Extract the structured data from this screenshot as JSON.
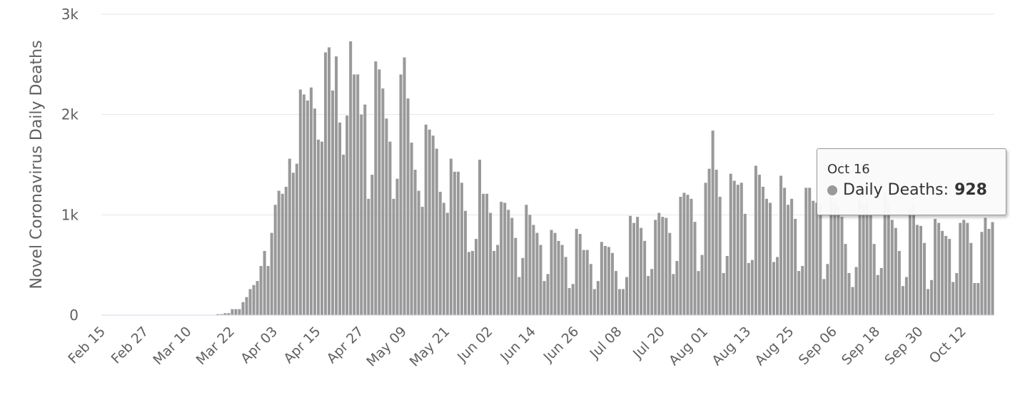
{
  "chart_data": {
    "type": "bar",
    "title": "",
    "xlabel": "",
    "ylabel": "Novel Coronavirus Daily Deaths",
    "ylim": [
      0,
      3000
    ],
    "ytick_values": [
      0,
      1000,
      2000,
      3000
    ],
    "ytick_labels": [
      "0",
      "1k",
      "2k",
      "3k"
    ],
    "xtick_labels": [
      "Feb 15",
      "Feb 27",
      "Mar 10",
      "Mar 22",
      "Apr 03",
      "Apr 15",
      "Apr 27",
      "May 09",
      "May 21",
      "Jun 02",
      "Jun 14",
      "Jun 26",
      "Jul 08",
      "Jul 20",
      "Aug 01",
      "Aug 13",
      "Aug 25",
      "Sep 06",
      "Sep 18",
      "Sep 30",
      "Oct 12"
    ],
    "categories_range": [
      "Feb 15",
      "Oct 16"
    ],
    "grid": true,
    "bar_color": "#999999",
    "series": [
      {
        "name": "Daily Deaths",
        "values": [
          0,
          0,
          0,
          0,
          0,
          0,
          0,
          0,
          0,
          0,
          0,
          0,
          0,
          0,
          0,
          0,
          0,
          0,
          0,
          0,
          0,
          0,
          0,
          0,
          0,
          0,
          0,
          0,
          0,
          0,
          0,
          0,
          10,
          10,
          20,
          20,
          60,
          60,
          60,
          130,
          180,
          260,
          300,
          340,
          490,
          640,
          490,
          820,
          1100,
          1240,
          1210,
          1280,
          1560,
          1420,
          1510,
          2250,
          2200,
          2140,
          2270,
          2060,
          1750,
          1730,
          2620,
          2670,
          2240,
          2580,
          1920,
          1600,
          1990,
          2730,
          2400,
          2400,
          2000,
          2100,
          1160,
          1400,
          2530,
          2450,
          2260,
          1960,
          1730,
          1160,
          1360,
          2400,
          2570,
          2160,
          1720,
          1450,
          1240,
          1080,
          1900,
          1850,
          1790,
          1660,
          1230,
          1120,
          1020,
          1560,
          1430,
          1430,
          1320,
          1040,
          630,
          640,
          760,
          1550,
          1210,
          1210,
          1020,
          640,
          700,
          1130,
          1120,
          1050,
          970,
          770,
          380,
          570,
          1100,
          1000,
          900,
          820,
          700,
          340,
          410,
          850,
          820,
          740,
          700,
          580,
          270,
          310,
          860,
          810,
          650,
          650,
          510,
          260,
          340,
          730,
          690,
          680,
          620,
          440,
          260,
          260,
          380,
          990,
          920,
          980,
          870,
          740,
          390,
          460,
          950,
          1020,
          980,
          970,
          820,
          410,
          540,
          1180,
          1220,
          1200,
          1160,
          930,
          440,
          600,
          1320,
          1460,
          1840,
          1450,
          1180,
          420,
          590,
          1410,
          1340,
          1300,
          1320,
          1010,
          520,
          550,
          1490,
          1400,
          1280,
          1160,
          1120,
          530,
          580,
          1390,
          1270,
          1100,
          1160,
          960,
          440,
          490,
          1270,
          1270,
          1140,
          1120,
          1100,
          360,
          510,
          1170,
          1120,
          1080,
          980,
          710,
          420,
          280,
          480,
          1150,
          1100,
          1120,
          1000,
          710,
          400,
          470,
          1220,
          1130,
          950,
          870,
          640,
          290,
          380,
          1080,
          1110,
          900,
          890,
          720,
          260,
          350,
          960,
          920,
          840,
          790,
          760,
          330,
          420,
          920,
          950,
          920,
          720,
          320,
          320,
          830,
          970,
          860,
          928
        ]
      }
    ],
    "tooltip": {
      "date": "Oct 16",
      "series_name": "Daily Deaths:",
      "value": "928"
    }
  }
}
